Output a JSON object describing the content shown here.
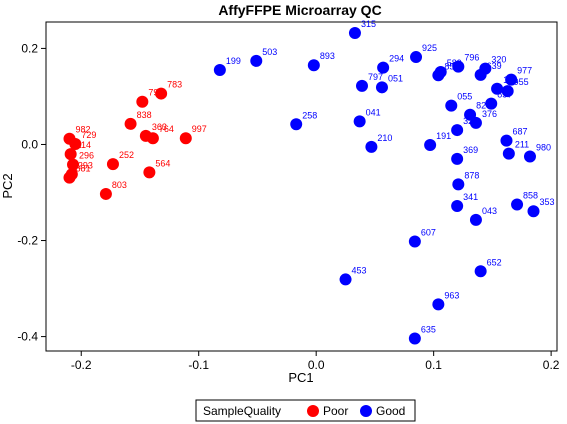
{
  "chart_data": {
    "type": "scatter",
    "title": "AffyFFPE Microarray QC",
    "xlabel": "PC1",
    "ylabel": "PC2",
    "xlim": [
      -0.23,
      0.205
    ],
    "ylim": [
      -0.43,
      0.255
    ],
    "xticks": [
      -0.2,
      -0.1,
      0.0,
      0.1,
      0.2
    ],
    "xtick_labels": [
      "-0.2",
      "-0.1",
      "0.0",
      "0.1",
      "0.2"
    ],
    "yticks": [
      -0.4,
      -0.2,
      0.0,
      0.2
    ],
    "ytick_labels": [
      "-0.4",
      "-0.2",
      "0.0",
      "0.2"
    ],
    "legend": {
      "title": "SampleQuality",
      "placement": "bottom",
      "entries": [
        {
          "name": "Poor",
          "color": "#ff0000"
        },
        {
          "name": "Good",
          "color": "#0000ff"
        }
      ]
    },
    "series": [
      {
        "name": "Poor",
        "color": "#ff0000",
        "points": [
          {
            "label": "783",
            "x": -0.132,
            "y": 0.106
          },
          {
            "label": "790",
            "x": -0.148,
            "y": 0.089
          },
          {
            "label": "838",
            "x": -0.158,
            "y": 0.043
          },
          {
            "label": "363",
            "x": -0.145,
            "y": 0.018
          },
          {
            "label": "764",
            "x": -0.139,
            "y": 0.013
          },
          {
            "label": "997",
            "x": -0.111,
            "y": 0.013
          },
          {
            "label": "982",
            "x": -0.21,
            "y": 0.012
          },
          {
            "label": "729",
            "x": -0.205,
            "y": 0.001
          },
          {
            "label": "114",
            "x": -0.209,
            "y": -0.02
          },
          {
            "label": "252",
            "x": -0.173,
            "y": -0.041
          },
          {
            "label": "296",
            "x": -0.207,
            "y": -0.042
          },
          {
            "label": "564",
            "x": -0.142,
            "y": -0.058
          },
          {
            "label": "293",
            "x": -0.208,
            "y": -0.062
          },
          {
            "label": "681",
            "x": -0.21,
            "y": -0.069
          },
          {
            "label": "803",
            "x": -0.179,
            "y": -0.103
          }
        ]
      },
      {
        "name": "Good",
        "color": "#0000ff",
        "points": [
          {
            "label": "315",
            "x": 0.033,
            "y": 0.232
          },
          {
            "label": "503",
            "x": -0.051,
            "y": 0.174
          },
          {
            "label": "893",
            "x": -0.002,
            "y": 0.165
          },
          {
            "label": "199",
            "x": -0.082,
            "y": 0.155
          },
          {
            "label": "294",
            "x": 0.057,
            "y": 0.16
          },
          {
            "label": "797",
            "x": 0.039,
            "y": 0.122
          },
          {
            "label": "051",
            "x": 0.056,
            "y": 0.119
          },
          {
            "label": "925",
            "x": 0.085,
            "y": 0.182
          },
          {
            "label": "796",
            "x": 0.121,
            "y": 0.162
          },
          {
            "label": "589",
            "x": 0.106,
            "y": 0.151
          },
          {
            "label": "853",
            "x": 0.104,
            "y": 0.144
          },
          {
            "label": "320",
            "x": 0.144,
            "y": 0.158
          },
          {
            "label": "639",
            "x": 0.14,
            "y": 0.145
          },
          {
            "label": "977",
            "x": 0.166,
            "y": 0.135
          },
          {
            "label": "151",
            "x": 0.154,
            "y": 0.116
          },
          {
            "label": "955",
            "x": 0.163,
            "y": 0.111
          },
          {
            "label": "055",
            "x": 0.115,
            "y": 0.081
          },
          {
            "label": "857",
            "x": 0.149,
            "y": 0.085
          },
          {
            "label": "826",
            "x": 0.131,
            "y": 0.062
          },
          {
            "label": "376",
            "x": 0.136,
            "y": 0.045
          },
          {
            "label": "326",
            "x": 0.12,
            "y": 0.03
          },
          {
            "label": "687",
            "x": 0.162,
            "y": 0.008
          },
          {
            "label": "980",
            "x": 0.182,
            "y": -0.025
          },
          {
            "label": "211",
            "x": 0.164,
            "y": -0.019
          },
          {
            "label": "258",
            "x": -0.017,
            "y": 0.042
          },
          {
            "label": "041",
            "x": 0.037,
            "y": 0.048
          },
          {
            "label": "210",
            "x": 0.047,
            "y": -0.005
          },
          {
            "label": "369",
            "x": 0.12,
            "y": -0.03
          },
          {
            "label": "191",
            "x": 0.097,
            "y": -0.001
          },
          {
            "label": "878",
            "x": 0.121,
            "y": -0.083
          },
          {
            "label": "341",
            "x": 0.12,
            "y": -0.128
          },
          {
            "label": "043",
            "x": 0.136,
            "y": -0.157
          },
          {
            "label": "858",
            "x": 0.171,
            "y": -0.125
          },
          {
            "label": "353",
            "x": 0.185,
            "y": -0.139
          },
          {
            "label": "607",
            "x": 0.084,
            "y": -0.202
          },
          {
            "label": "652",
            "x": 0.14,
            "y": -0.264
          },
          {
            "label": "453",
            "x": 0.025,
            "y": -0.281
          },
          {
            "label": "963",
            "x": 0.104,
            "y": -0.333
          },
          {
            "label": "635",
            "x": 0.084,
            "y": -0.404
          }
        ]
      }
    ]
  }
}
